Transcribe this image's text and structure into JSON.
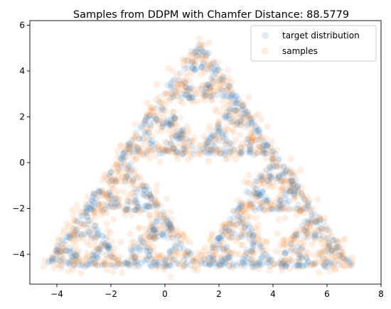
{
  "chart_data": {
    "type": "scatter",
    "title": "Samples from DDPM with Chamfer Distance: 88.5779",
    "xlabel": "",
    "ylabel": "",
    "xlim": [
      -5,
      8
    ],
    "ylim": [
      -5.3,
      6.2
    ],
    "x_ticks": [
      -4,
      -2,
      0,
      2,
      4,
      6,
      8
    ],
    "y_ticks": [
      -4,
      -2,
      0,
      2,
      4,
      6
    ],
    "x_tick_labels": [
      "−4",
      "−2",
      "0",
      "2",
      "4",
      "6",
      "8"
    ],
    "y_tick_labels": [
      "−4",
      "−2",
      "0",
      "2",
      "4",
      "6"
    ],
    "grid": false,
    "legend_position": "top-right",
    "point_alpha": 0.12,
    "triangle_vertices": [
      [
        -4.4,
        -4.5
      ],
      [
        6.9,
        -4.5
      ],
      [
        1.25,
        5.3
      ]
    ],
    "series": [
      {
        "name": "target distribution",
        "color": "#1f77b4",
        "count": 1300,
        "points": "sierpinski-triangle-fractal"
      },
      {
        "name": "samples",
        "color": "#ff7f0e",
        "count": 1100,
        "points": "noisy-sierpinski-triangle-fractal"
      }
    ]
  }
}
